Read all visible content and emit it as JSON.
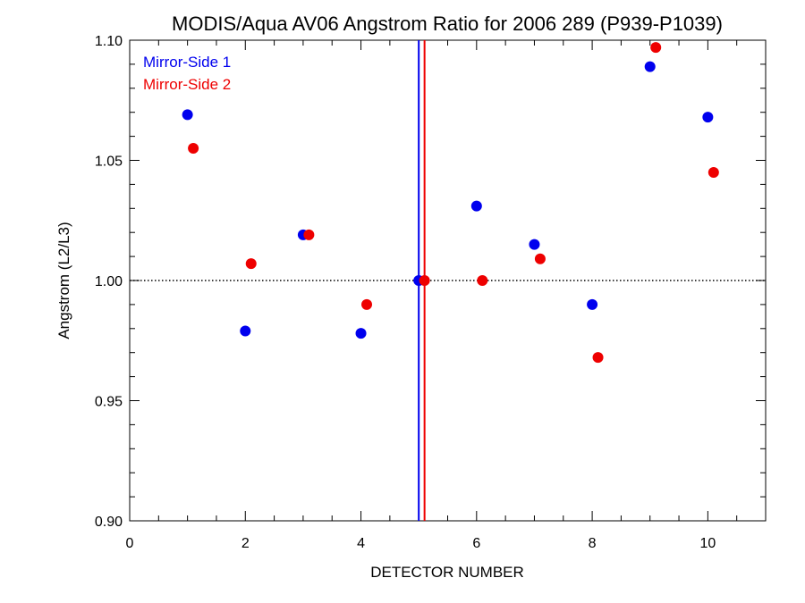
{
  "chart_data": {
    "type": "scatter",
    "title": "MODIS/Aqua AV06 Angstrom Ratio for 2006 289 (P939-P1039)",
    "xlabel": "DETECTOR NUMBER",
    "ylabel": "Angstrom (L2/L3)",
    "xlim": [
      0,
      11
    ],
    "ylim": [
      0.9,
      1.1
    ],
    "xticks": [
      0,
      2,
      4,
      6,
      8,
      10
    ],
    "xtick_labels": [
      "0",
      "2",
      "4",
      "6",
      "8",
      "10"
    ],
    "yticks": [
      0.9,
      0.95,
      1.0,
      1.05,
      1.1
    ],
    "ytick_labels": [
      "0.90",
      "0.95",
      "1.00",
      "1.05",
      "1.10"
    ],
    "grid": false,
    "legend_position": "top-left",
    "reference_line_y": 1.0,
    "vertical_lines": [
      {
        "x": 5.0,
        "color": "#0000ee"
      },
      {
        "x": 5.1,
        "color": "#ee0000"
      }
    ],
    "series": [
      {
        "name": "Mirror-Side 1",
        "color": "#0000ee",
        "x": [
          1,
          2,
          3,
          4,
          5,
          6,
          7,
          8,
          9,
          10
        ],
        "y": [
          1.069,
          0.979,
          1.019,
          0.978,
          1.0,
          1.031,
          1.015,
          0.99,
          1.089,
          1.068
        ]
      },
      {
        "name": "Mirror-Side 2",
        "color": "#ee0000",
        "x": [
          1.1,
          2.1,
          3.1,
          4.1,
          5.1,
          6.1,
          7.1,
          8.1,
          9.1,
          10.1
        ],
        "y": [
          1.055,
          1.007,
          1.019,
          0.99,
          1.0,
          1.0,
          1.009,
          0.968,
          1.097,
          1.045
        ]
      }
    ]
  }
}
